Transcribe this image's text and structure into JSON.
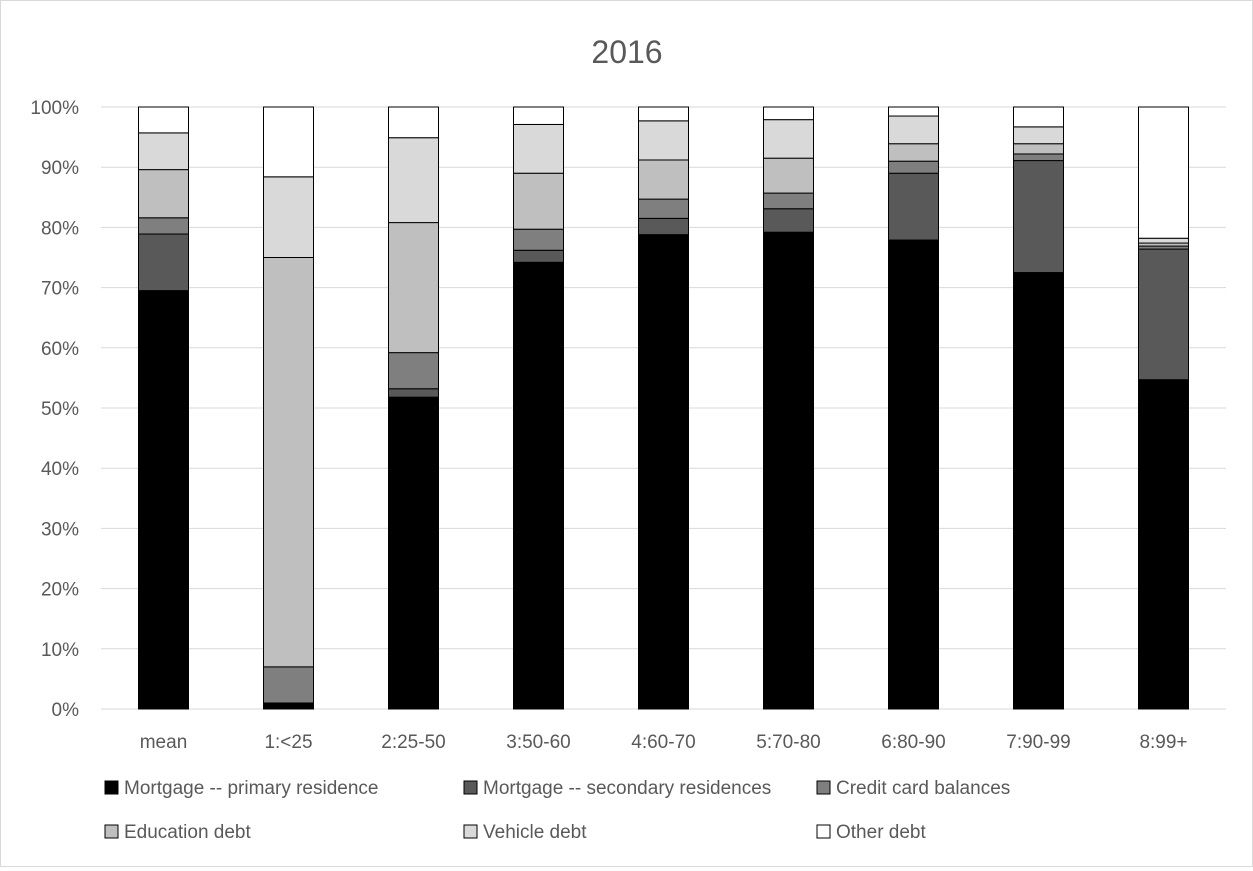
{
  "chart_data": {
    "type": "bar",
    "stacked": true,
    "title": "2016",
    "xlabel": "",
    "ylabel": "",
    "ylim": [
      0,
      100
    ],
    "y_ticks": [
      "0%",
      "10%",
      "20%",
      "30%",
      "40%",
      "50%",
      "60%",
      "70%",
      "80%",
      "90%",
      "100%"
    ],
    "grid": true,
    "legend_position": "bottom",
    "categories": [
      "mean",
      "1:<25",
      "2:25-50",
      "3:50-60",
      "4:60-70",
      "5:70-80",
      "6:80-90",
      "7:90-99",
      "8:99+"
    ],
    "series": [
      {
        "name": "Mortgage -- primary residence",
        "color": "#000000",
        "values": [
          69.5,
          1.0,
          51.8,
          74.2,
          78.8,
          79.2,
          77.9,
          72.5,
          54.7
        ]
      },
      {
        "name": "Mortgage -- secondary residences",
        "color": "#595959",
        "values": [
          9.4,
          0.0,
          1.4,
          2.0,
          2.7,
          3.9,
          11.1,
          18.6,
          21.7
        ]
      },
      {
        "name": "Credit card balances",
        "color": "#7f7f7f",
        "values": [
          2.7,
          6.0,
          6.0,
          3.5,
          3.2,
          2.6,
          2.0,
          1.1,
          0.5
        ]
      },
      {
        "name": "Education debt",
        "color": "#bfbfbf",
        "values": [
          8.0,
          68.0,
          21.6,
          9.3,
          6.5,
          5.8,
          2.9,
          1.7,
          0.5
        ]
      },
      {
        "name": "Vehicle debt",
        "color": "#d9d9d9",
        "values": [
          6.1,
          13.4,
          14.1,
          8.1,
          6.5,
          6.4,
          4.6,
          2.8,
          0.8
        ]
      },
      {
        "name": "Other debt",
        "color": "#ffffff",
        "values": [
          4.3,
          11.6,
          5.1,
          2.9,
          2.3,
          2.1,
          1.5,
          3.3,
          21.8
        ]
      }
    ]
  }
}
